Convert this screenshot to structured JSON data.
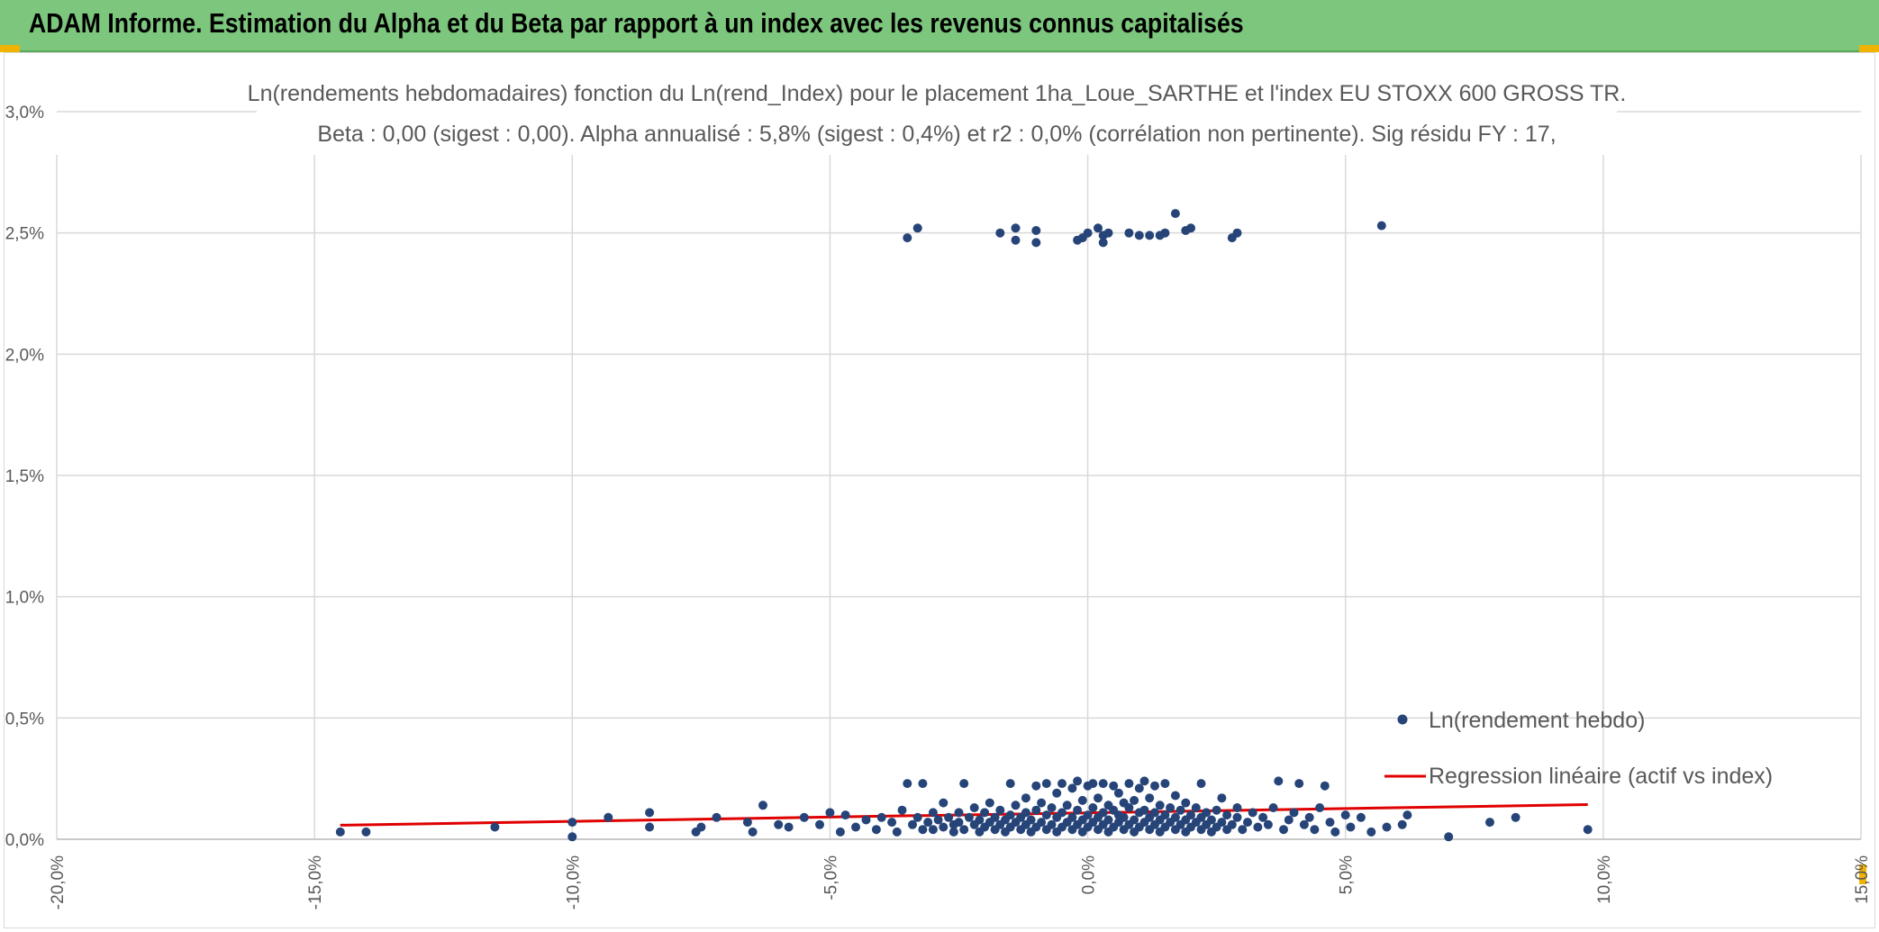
{
  "header": {
    "title": "ADAM Informe. Estimation du Alpha et du Beta par rapport à un index avec les revenus connus capitalisés",
    "background_color": "#7dc67d"
  },
  "chart_data": {
    "type": "scatter",
    "title_lines": [
      "Ln(rendements hebdomadaires) fonction du Ln(rend_Index) pour le placement 1ha_Loue_SARTHE et l'index EU STOXX 600 GROSS TR.",
      "Beta : 0,00 (sigest : 0,00). Alpha annualisé : 5,8% (sigest : 0,4%) et r2 : 0,0% (corrélation non pertinente). Sig résidu FY : 17,"
    ],
    "xlabel": "",
    "ylabel": "",
    "xlim": [
      -0.2,
      0.15
    ],
    "ylim": [
      0.0,
      0.03
    ],
    "x_ticks": [
      -0.2,
      -0.15,
      -0.1,
      -0.05,
      0.0,
      0.05,
      0.1,
      0.15
    ],
    "x_tick_labels": [
      "-20,0%",
      "-15,0%",
      "-10,0%",
      "-5,0%",
      "0,0%",
      "5,0%",
      "10,0%",
      "15,0%"
    ],
    "y_ticks": [
      0.0,
      0.005,
      0.01,
      0.015,
      0.02,
      0.025,
      0.03
    ],
    "y_tick_labels": [
      "0,0%",
      "0,5%",
      "1,0%",
      "1,5%",
      "2,0%",
      "2,5%",
      "3,0%"
    ],
    "grid": true,
    "legend_position": "right",
    "series": [
      {
        "name": "Ln(rendement hebdo)",
        "kind": "scatter",
        "color": "#264478",
        "points": [
          [
            -0.145,
            0.0003
          ],
          [
            -0.14,
            0.0003
          ],
          [
            -0.115,
            0.0005
          ],
          [
            -0.1,
            0.0007
          ],
          [
            -0.1,
            0.0001
          ],
          [
            -0.093,
            0.0009
          ],
          [
            -0.085,
            0.0011
          ],
          [
            -0.085,
            0.0005
          ],
          [
            -0.076,
            0.0003
          ],
          [
            -0.075,
            0.0005
          ],
          [
            -0.072,
            0.0009
          ],
          [
            -0.066,
            0.0007
          ],
          [
            -0.065,
            0.0003
          ],
          [
            -0.063,
            0.0014
          ],
          [
            -0.06,
            0.0006
          ],
          [
            -0.058,
            0.0005
          ],
          [
            -0.055,
            0.0009
          ],
          [
            -0.052,
            0.0006
          ],
          [
            -0.05,
            0.0011
          ],
          [
            -0.048,
            0.0003
          ],
          [
            -0.047,
            0.001
          ],
          [
            -0.045,
            0.0005
          ],
          [
            -0.043,
            0.0008
          ],
          [
            -0.041,
            0.0004
          ],
          [
            -0.04,
            0.0009
          ],
          [
            -0.038,
            0.0007
          ],
          [
            -0.037,
            0.0003
          ],
          [
            -0.036,
            0.0012
          ],
          [
            -0.035,
            0.0023
          ],
          [
            -0.034,
            0.0006
          ],
          [
            -0.033,
            0.0009
          ],
          [
            -0.032,
            0.0004
          ],
          [
            -0.032,
            0.0023
          ],
          [
            -0.031,
            0.0007
          ],
          [
            -0.03,
            0.0011
          ],
          [
            -0.03,
            0.0004
          ],
          [
            -0.029,
            0.0008
          ],
          [
            -0.028,
            0.0005
          ],
          [
            -0.028,
            0.0015
          ],
          [
            -0.027,
            0.0009
          ],
          [
            -0.026,
            0.0003
          ],
          [
            -0.026,
            0.0006
          ],
          [
            -0.025,
            0.0011
          ],
          [
            -0.025,
            0.0007
          ],
          [
            -0.024,
            0.0004
          ],
          [
            -0.024,
            0.0023
          ],
          [
            -0.023,
            0.0009
          ],
          [
            -0.022,
            0.0006
          ],
          [
            -0.022,
            0.0013
          ],
          [
            -0.021,
            0.0003
          ],
          [
            -0.021,
            0.0008
          ],
          [
            -0.02,
            0.0005
          ],
          [
            -0.02,
            0.0011
          ],
          [
            -0.019,
            0.0007
          ],
          [
            -0.019,
            0.0015
          ],
          [
            -0.018,
            0.0004
          ],
          [
            -0.018,
            0.0009
          ],
          [
            -0.017,
            0.0006
          ],
          [
            -0.017,
            0.0012
          ],
          [
            -0.016,
            0.0003
          ],
          [
            -0.016,
            0.0008
          ],
          [
            -0.015,
            0.0005
          ],
          [
            -0.015,
            0.001
          ],
          [
            -0.015,
            0.0023
          ],
          [
            -0.014,
            0.0007
          ],
          [
            -0.014,
            0.0014
          ],
          [
            -0.013,
            0.0004
          ],
          [
            -0.013,
            0.0009
          ],
          [
            -0.012,
            0.0006
          ],
          [
            -0.012,
            0.0011
          ],
          [
            -0.012,
            0.0017
          ],
          [
            -0.011,
            0.0003
          ],
          [
            -0.011,
            0.0008
          ],
          [
            -0.01,
            0.0005
          ],
          [
            -0.01,
            0.0012
          ],
          [
            -0.01,
            0.0022
          ],
          [
            -0.009,
            0.0007
          ],
          [
            -0.009,
            0.0015
          ],
          [
            -0.008,
            0.0004
          ],
          [
            -0.008,
            0.001
          ],
          [
            -0.008,
            0.0023
          ],
          [
            -0.007,
            0.0006
          ],
          [
            -0.007,
            0.0013
          ],
          [
            -0.006,
            0.0003
          ],
          [
            -0.006,
            0.0009
          ],
          [
            -0.006,
            0.0019
          ],
          [
            -0.005,
            0.0005
          ],
          [
            -0.005,
            0.0011
          ],
          [
            -0.005,
            0.0023
          ],
          [
            -0.004,
            0.0007
          ],
          [
            -0.004,
            0.0014
          ],
          [
            -0.003,
            0.0004
          ],
          [
            -0.003,
            0.0009
          ],
          [
            -0.003,
            0.0021
          ],
          [
            -0.002,
            0.0006
          ],
          [
            -0.002,
            0.0012
          ],
          [
            -0.002,
            0.0024
          ],
          [
            -0.001,
            0.0003
          ],
          [
            -0.001,
            0.0008
          ],
          [
            -0.001,
            0.0016
          ],
          [
            0.0,
            0.0005
          ],
          [
            0.0,
            0.001
          ],
          [
            0.0,
            0.0022
          ],
          [
            0.001,
            0.0007
          ],
          [
            0.001,
            0.0013
          ],
          [
            0.001,
            0.0023
          ],
          [
            0.002,
            0.0004
          ],
          [
            0.002,
            0.0009
          ],
          [
            0.002,
            0.0017
          ],
          [
            0.003,
            0.0006
          ],
          [
            0.003,
            0.0011
          ],
          [
            0.003,
            0.0023
          ],
          [
            0.004,
            0.0003
          ],
          [
            0.004,
            0.0008
          ],
          [
            0.004,
            0.0014
          ],
          [
            0.005,
            0.0005
          ],
          [
            0.005,
            0.0012
          ],
          [
            0.005,
            0.0022
          ],
          [
            0.006,
            0.0007
          ],
          [
            0.006,
            0.001
          ],
          [
            0.006,
            0.0019
          ],
          [
            0.007,
            0.0004
          ],
          [
            0.007,
            0.0009
          ],
          [
            0.007,
            0.0015
          ],
          [
            0.008,
            0.0006
          ],
          [
            0.008,
            0.0013
          ],
          [
            0.008,
            0.0023
          ],
          [
            0.009,
            0.0003
          ],
          [
            0.009,
            0.0008
          ],
          [
            0.009,
            0.0016
          ],
          [
            0.01,
            0.0005
          ],
          [
            0.01,
            0.0011
          ],
          [
            0.01,
            0.0021
          ],
          [
            0.011,
            0.0007
          ],
          [
            0.011,
            0.0012
          ],
          [
            0.011,
            0.0024
          ],
          [
            0.012,
            0.0004
          ],
          [
            0.012,
            0.0009
          ],
          [
            0.012,
            0.0017
          ],
          [
            0.013,
            0.0006
          ],
          [
            0.013,
            0.0011
          ],
          [
            0.013,
            0.0022
          ],
          [
            0.014,
            0.0003
          ],
          [
            0.014,
            0.0008
          ],
          [
            0.014,
            0.0014
          ],
          [
            0.015,
            0.0005
          ],
          [
            0.015,
            0.001
          ],
          [
            0.015,
            0.0023
          ],
          [
            0.016,
            0.0007
          ],
          [
            0.016,
            0.0013
          ],
          [
            0.017,
            0.0004
          ],
          [
            0.017,
            0.0009
          ],
          [
            0.017,
            0.0018
          ],
          [
            0.018,
            0.0006
          ],
          [
            0.018,
            0.0012
          ],
          [
            0.019,
            0.0003
          ],
          [
            0.019,
            0.0008
          ],
          [
            0.019,
            0.0015
          ],
          [
            0.02,
            0.0005
          ],
          [
            0.02,
            0.001
          ],
          [
            0.021,
            0.0007
          ],
          [
            0.021,
            0.0013
          ],
          [
            0.022,
            0.0004
          ],
          [
            0.022,
            0.0009
          ],
          [
            0.022,
            0.0023
          ],
          [
            0.023,
            0.0006
          ],
          [
            0.023,
            0.0011
          ],
          [
            0.024,
            0.0003
          ],
          [
            0.024,
            0.0008
          ],
          [
            0.025,
            0.0005
          ],
          [
            0.025,
            0.0012
          ],
          [
            0.026,
            0.0007
          ],
          [
            0.026,
            0.0017
          ],
          [
            0.027,
            0.0004
          ],
          [
            0.027,
            0.001
          ],
          [
            0.028,
            0.0006
          ],
          [
            0.029,
            0.0009
          ],
          [
            0.029,
            0.0013
          ],
          [
            0.03,
            0.0004
          ],
          [
            0.031,
            0.0007
          ],
          [
            0.032,
            0.0011
          ],
          [
            0.033,
            0.0005
          ],
          [
            0.034,
            0.0009
          ],
          [
            0.035,
            0.0006
          ],
          [
            0.036,
            0.0013
          ],
          [
            0.037,
            0.0024
          ],
          [
            0.038,
            0.0004
          ],
          [
            0.039,
            0.0008
          ],
          [
            0.04,
            0.0011
          ],
          [
            0.041,
            0.0023
          ],
          [
            0.042,
            0.0006
          ],
          [
            0.043,
            0.0009
          ],
          [
            0.044,
            0.0004
          ],
          [
            0.045,
            0.0013
          ],
          [
            0.046,
            0.0022
          ],
          [
            0.047,
            0.0007
          ],
          [
            0.048,
            0.0003
          ],
          [
            0.05,
            0.001
          ],
          [
            0.051,
            0.0005
          ],
          [
            0.053,
            0.0009
          ],
          [
            0.055,
            0.0003
          ],
          [
            0.058,
            0.0005
          ],
          [
            0.061,
            0.0006
          ],
          [
            0.062,
            0.001
          ],
          [
            0.07,
            0.0001
          ],
          [
            0.078,
            0.0007
          ],
          [
            0.083,
            0.0009
          ],
          [
            0.097,
            0.0004
          ],
          [
            -0.035,
            0.0248
          ],
          [
            -0.033,
            0.0252
          ],
          [
            -0.017,
            0.025
          ],
          [
            -0.014,
            0.0252
          ],
          [
            -0.014,
            0.0247
          ],
          [
            -0.01,
            0.0251
          ],
          [
            -0.01,
            0.0246
          ],
          [
            -0.002,
            0.0247
          ],
          [
            -0.001,
            0.0248
          ],
          [
            0.0,
            0.025
          ],
          [
            0.002,
            0.0252
          ],
          [
            0.003,
            0.0249
          ],
          [
            0.003,
            0.0246
          ],
          [
            0.004,
            0.025
          ],
          [
            0.008,
            0.025
          ],
          [
            0.01,
            0.0249
          ],
          [
            0.012,
            0.0249
          ],
          [
            0.014,
            0.0249
          ],
          [
            0.015,
            0.025
          ],
          [
            0.017,
            0.0258
          ],
          [
            0.019,
            0.0251
          ],
          [
            0.02,
            0.0252
          ],
          [
            0.028,
            0.0248
          ],
          [
            0.029,
            0.025
          ],
          [
            0.057,
            0.0253
          ]
        ]
      },
      {
        "name": "Regression linéaire (actif vs index)",
        "kind": "line",
        "color": "#e00000",
        "points": [
          [
            -0.145,
            0.00058
          ],
          [
            0.097,
            0.00143
          ]
        ]
      }
    ]
  }
}
